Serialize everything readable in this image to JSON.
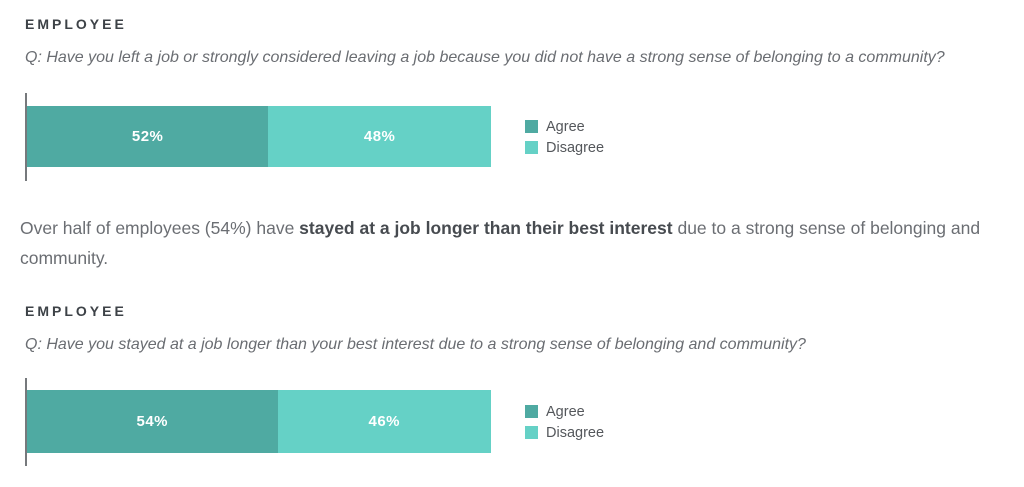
{
  "colors": {
    "agree": "#4faaa2",
    "disagree": "#65d1c6",
    "axis": "#76797c",
    "bar_label": "#ffffff"
  },
  "sections": [
    {
      "label": "EMPLOYEE",
      "question": "Q: Have you left a job or strongly considered leaving a job because you did not have a strong sense of belonging to a community?"
    },
    {
      "label": "EMPLOYEE",
      "question": "Q: Have you stayed at a job longer than your best interest due to a strong sense of belonging and community?"
    }
  ],
  "takeaway": {
    "pre": "Over half of employees (54%) have ",
    "bold": "stayed at a job longer than their best interest",
    "post": " due to a strong sense of belonging and community."
  },
  "chart_data": [
    {
      "type": "bar",
      "stacked": true,
      "orientation": "horizontal",
      "title": "",
      "categories": [
        "Agree",
        "Disagree"
      ],
      "values": [
        52,
        48
      ],
      "labels": [
        "52%",
        "48%"
      ],
      "colors": [
        "#4faaa2",
        "#65d1c6"
      ],
      "legend": [
        "Agree",
        "Disagree"
      ],
      "legend_position": "right",
      "xlim": [
        0,
        100
      ],
      "grid": false
    },
    {
      "type": "bar",
      "stacked": true,
      "orientation": "horizontal",
      "title": "",
      "categories": [
        "Agree",
        "Disagree"
      ],
      "values": [
        54,
        46
      ],
      "labels": [
        "54%",
        "46%"
      ],
      "colors": [
        "#4faaa2",
        "#65d1c6"
      ],
      "legend": [
        "Agree",
        "Disagree"
      ],
      "legend_position": "right",
      "xlim": [
        0,
        100
      ],
      "grid": false
    }
  ]
}
